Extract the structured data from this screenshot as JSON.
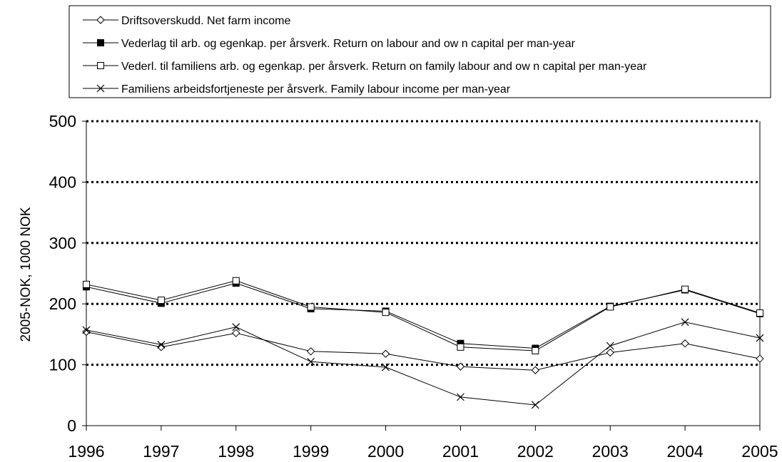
{
  "chart_data": {
    "type": "line",
    "title": "",
    "xlabel": "",
    "ylabel": "2005-NOK, 1000 NOK",
    "x": [
      "1996",
      "1997",
      "1998",
      "1999",
      "2000",
      "2001",
      "2002",
      "2003",
      "2004",
      "2005"
    ],
    "ylim": [
      0,
      500
    ],
    "yticks": [
      "0",
      "100",
      "200",
      "300",
      "400",
      "500"
    ],
    "grid": "horizontal dotted",
    "legend_position": "top",
    "series": [
      {
        "name": "Driftsoverskudd. Net farm income",
        "marker": "diamond-open",
        "values": [
          154,
          129,
          152,
          122,
          118,
          97,
          91,
          120,
          135,
          110
        ]
      },
      {
        "name": "Vederlag til arb. og egenkap. per årsverk. Return on labour and ow n capital per man-year",
        "marker": "square-filled",
        "values": [
          228,
          201,
          234,
          192,
          188,
          135,
          127,
          196,
          223,
          184
        ]
      },
      {
        "name": "Vederl. til familiens arb. og egenkap. per årsverk. Return on family labour and ow n capital per man-year",
        "marker": "square-open",
        "values": [
          232,
          206,
          238,
          195,
          186,
          129,
          123,
          195,
          224,
          185
        ]
      },
      {
        "name": "Familiens arbeidsfortjeneste per årsverk. Family labour income per man-year",
        "marker": "x",
        "values": [
          157,
          133,
          162,
          105,
          96,
          47,
          34,
          131,
          170,
          144
        ]
      }
    ]
  }
}
